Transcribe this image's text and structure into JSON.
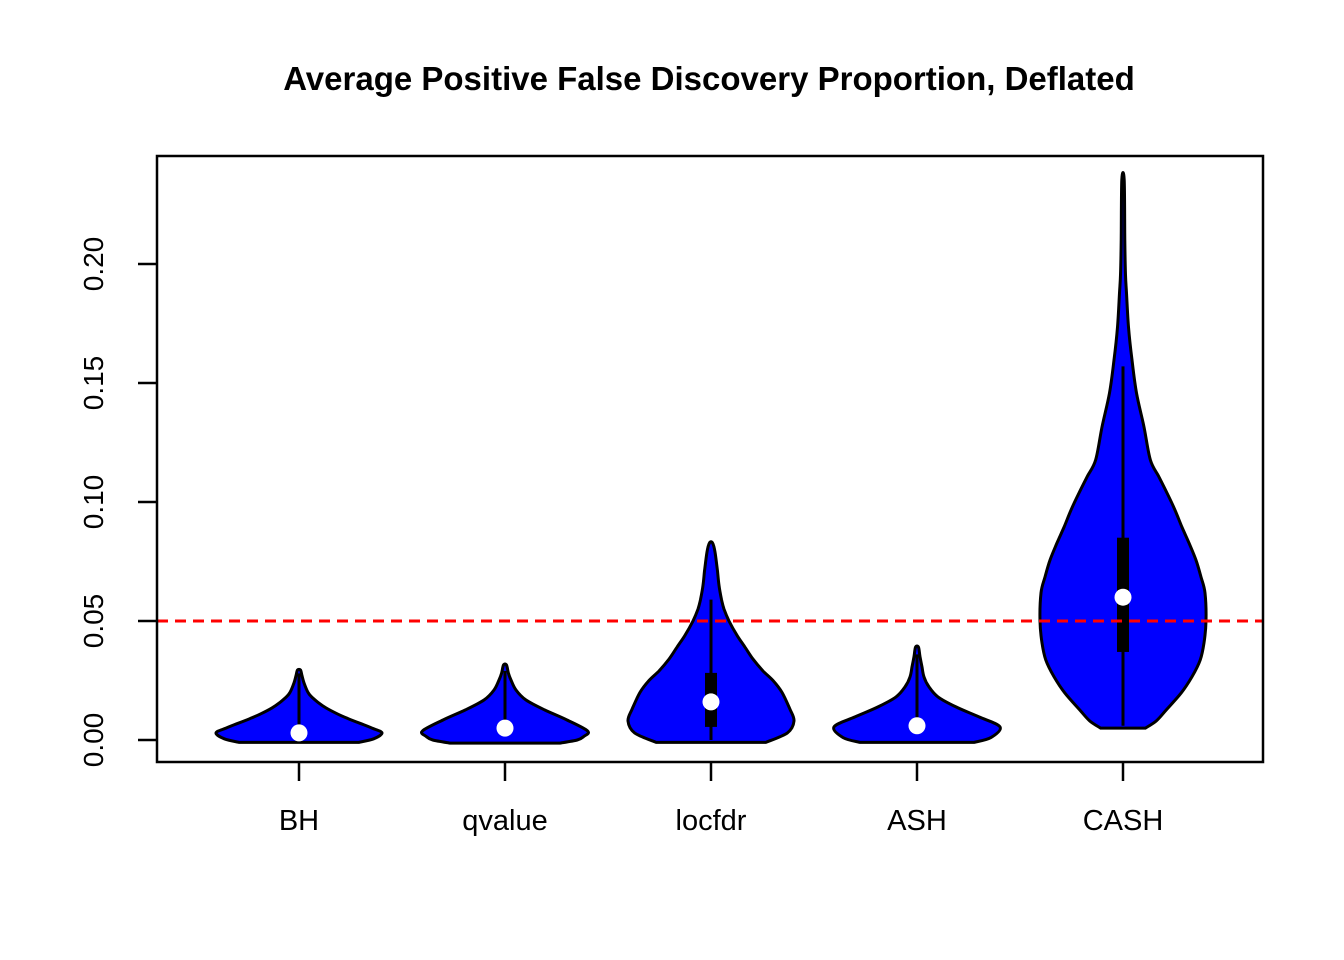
{
  "title": "Average Positive False Discovery Proportion, Deflated",
  "chart_data": {
    "type": "violin",
    "title": "Average Positive False Discovery Proportion, Deflated",
    "categories": [
      "BH",
      "qvalue",
      "locfdr",
      "ASH",
      "CASH"
    ],
    "xlabel": "",
    "ylabel": "",
    "ylim": [
      -0.009,
      0.245
    ],
    "grid": false,
    "legend": "none",
    "y_ticks": [
      0.0,
      0.05,
      0.1,
      0.15,
      0.2
    ],
    "y_tick_labels": [
      "0.00",
      "0.05",
      "0.10",
      "0.15",
      "0.20"
    ],
    "reference_line": {
      "y": 0.05,
      "color": "#ff0000",
      "style": "dashed"
    },
    "violin_fill": "#0000ff",
    "violin_outline": "#000000",
    "median_dot_color": "#ffffff",
    "box_color": "#000000",
    "series": [
      {
        "name": "BH",
        "median": 0.003,
        "quartiles": null,
        "whisker": [
          0.003,
          0.028
        ],
        "range": [
          -0.001,
          0.029
        ],
        "profile": [
          [
            -0.001,
            0.72
          ],
          [
            0.0005,
            0.9
          ],
          [
            0.003,
            1.0
          ],
          [
            0.005,
            0.88
          ],
          [
            0.007,
            0.735
          ],
          [
            0.009,
            0.59
          ],
          [
            0.011,
            0.46
          ],
          [
            0.0135,
            0.325
          ],
          [
            0.0155,
            0.24
          ],
          [
            0.018,
            0.157
          ],
          [
            0.02,
            0.108
          ],
          [
            0.024,
            0.06
          ],
          [
            0.027,
            0.036
          ],
          [
            0.0294,
            0.018
          ]
        ]
      },
      {
        "name": "qvalue",
        "median": 0.005,
        "quartiles": null,
        "whisker": [
          0.005,
          0.029
        ],
        "range": [
          -0.0013,
          0.0315
        ],
        "profile": [
          [
            -0.0013,
            0.66
          ],
          [
            0.0,
            0.87
          ],
          [
            0.0015,
            0.95
          ],
          [
            0.0038,
            0.995
          ],
          [
            0.0084,
            0.747
          ],
          [
            0.0126,
            0.48
          ],
          [
            0.0168,
            0.253
          ],
          [
            0.021,
            0.133
          ],
          [
            0.0252,
            0.072
          ],
          [
            0.028,
            0.042
          ],
          [
            0.0315,
            0.018
          ]
        ]
      },
      {
        "name": "locfdr",
        "median": 0.016,
        "quartiles": [
          0.0055,
          0.0282
        ],
        "whisker": [
          0.0,
          0.059
        ],
        "range": [
          -0.001,
          0.083
        ],
        "profile": [
          [
            -0.001,
            0.66
          ],
          [
            0.003,
            0.92
          ],
          [
            0.008,
            1.0
          ],
          [
            0.013,
            0.95
          ],
          [
            0.02,
            0.855
          ],
          [
            0.025,
            0.747
          ],
          [
            0.029,
            0.627
          ],
          [
            0.034,
            0.506
          ],
          [
            0.039,
            0.41
          ],
          [
            0.044,
            0.313
          ],
          [
            0.05,
            0.217
          ],
          [
            0.055,
            0.157
          ],
          [
            0.059,
            0.127
          ],
          [
            0.065,
            0.096
          ],
          [
            0.071,
            0.078
          ],
          [
            0.079,
            0.048
          ],
          [
            0.0828,
            0.018
          ]
        ]
      },
      {
        "name": "ASH",
        "median": 0.006,
        "quartiles": null,
        "whisker": [
          0.006,
          0.036
        ],
        "range": [
          -0.001,
          0.039
        ],
        "profile": [
          [
            -0.001,
            0.687
          ],
          [
            0.001,
            0.89
          ],
          [
            0.0055,
            1.0
          ],
          [
            0.0097,
            0.747
          ],
          [
            0.0139,
            0.47
          ],
          [
            0.0181,
            0.253
          ],
          [
            0.0223,
            0.145
          ],
          [
            0.0265,
            0.084
          ],
          [
            0.0307,
            0.06
          ],
          [
            0.035,
            0.036
          ],
          [
            0.039,
            0.018
          ]
        ]
      },
      {
        "name": "CASH",
        "median": 0.06,
        "quartiles": [
          0.037,
          0.085
        ],
        "whisker": [
          0.006,
          0.157
        ],
        "range": [
          0.005,
          0.235
        ],
        "profile": [
          [
            0.005,
            0.27
          ],
          [
            0.008,
            0.4
          ],
          [
            0.0126,
            0.52
          ],
          [
            0.0197,
            0.7
          ],
          [
            0.0265,
            0.83
          ],
          [
            0.0336,
            0.93
          ],
          [
            0.0408,
            0.976
          ],
          [
            0.05,
            1.0
          ],
          [
            0.0618,
            0.988
          ],
          [
            0.0685,
            0.94
          ],
          [
            0.0756,
            0.88
          ],
          [
            0.0828,
            0.795
          ],
          [
            0.0895,
            0.71
          ],
          [
            0.0966,
            0.627
          ],
          [
            0.1038,
            0.53
          ],
          [
            0.1105,
            0.434
          ],
          [
            0.1176,
            0.33
          ],
          [
            0.1315,
            0.253
          ],
          [
            0.1458,
            0.163
          ],
          [
            0.1597,
            0.108
          ],
          [
            0.1735,
            0.066
          ],
          [
            0.1878,
            0.042
          ],
          [
            0.1954,
            0.03
          ],
          [
            0.21,
            0.022
          ],
          [
            0.2353,
            0.014
          ]
        ]
      }
    ]
  }
}
